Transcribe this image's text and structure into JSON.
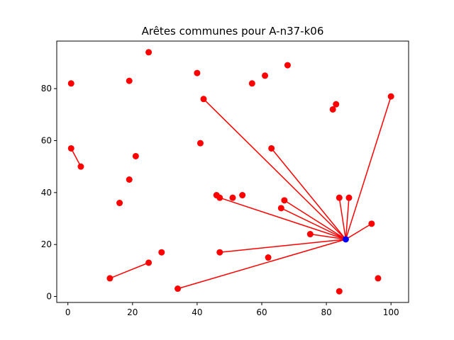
{
  "chart_data": {
    "type": "scatter",
    "title": "Arêtes communes pour A-n37-k06",
    "xlabel": "",
    "ylabel": "",
    "xlim": [
      -3.45,
      105.45
    ],
    "ylim": [
      -2.3,
      98.3
    ],
    "xticks": [
      0,
      20,
      40,
      60,
      80,
      100
    ],
    "yticks": [
      0,
      20,
      40,
      60,
      80
    ],
    "grid": false,
    "colors": {
      "points": "#ff0000",
      "edges": "#ff0000",
      "depot": "#0000ff"
    },
    "depot": {
      "x": 86,
      "y": 22
    },
    "points": [
      {
        "x": 1,
        "y": 82
      },
      {
        "x": 19,
        "y": 83
      },
      {
        "x": 25,
        "y": 94
      },
      {
        "x": 40,
        "y": 86
      },
      {
        "x": 42,
        "y": 76
      },
      {
        "x": 57,
        "y": 82
      },
      {
        "x": 61,
        "y": 85
      },
      {
        "x": 68,
        "y": 89
      },
      {
        "x": 82,
        "y": 72
      },
      {
        "x": 83,
        "y": 74
      },
      {
        "x": 100,
        "y": 77
      },
      {
        "x": 1,
        "y": 57
      },
      {
        "x": 4,
        "y": 50
      },
      {
        "x": 21,
        "y": 54
      },
      {
        "x": 41,
        "y": 59
      },
      {
        "x": 63,
        "y": 57
      },
      {
        "x": 19,
        "y": 45
      },
      {
        "x": 16,
        "y": 36
      },
      {
        "x": 46,
        "y": 39
      },
      {
        "x": 47,
        "y": 38
      },
      {
        "x": 51,
        "y": 38
      },
      {
        "x": 54,
        "y": 39
      },
      {
        "x": 67,
        "y": 37
      },
      {
        "x": 66,
        "y": 34
      },
      {
        "x": 84,
        "y": 38
      },
      {
        "x": 87,
        "y": 38
      },
      {
        "x": 75,
        "y": 24
      },
      {
        "x": 94,
        "y": 28
      },
      {
        "x": 29,
        "y": 17
      },
      {
        "x": 47,
        "y": 17
      },
      {
        "x": 25,
        "y": 13
      },
      {
        "x": 62,
        "y": 15
      },
      {
        "x": 13,
        "y": 7
      },
      {
        "x": 34,
        "y": 3
      },
      {
        "x": 96,
        "y": 7
      },
      {
        "x": 84,
        "y": 2
      }
    ],
    "edges": [
      [
        [
          86,
          22
        ],
        [
          42,
          76
        ]
      ],
      [
        [
          86,
          22
        ],
        [
          63,
          57
        ]
      ],
      [
        [
          86,
          22
        ],
        [
          100,
          77
        ]
      ],
      [
        [
          86,
          22
        ],
        [
          47,
          38
        ]
      ],
      [
        [
          86,
          22
        ],
        [
          67,
          37
        ]
      ],
      [
        [
          86,
          22
        ],
        [
          66,
          34
        ]
      ],
      [
        [
          86,
          22
        ],
        [
          84,
          38
        ]
      ],
      [
        [
          86,
          22
        ],
        [
          87,
          38
        ]
      ],
      [
        [
          86,
          22
        ],
        [
          75,
          24
        ]
      ],
      [
        [
          86,
          22
        ],
        [
          94,
          28
        ]
      ],
      [
        [
          86,
          22
        ],
        [
          47,
          17
        ]
      ],
      [
        [
          86,
          22
        ],
        [
          34,
          3
        ]
      ],
      [
        [
          1,
          57
        ],
        [
          4,
          50
        ]
      ],
      [
        [
          13,
          7
        ],
        [
          25,
          13
        ]
      ]
    ]
  }
}
